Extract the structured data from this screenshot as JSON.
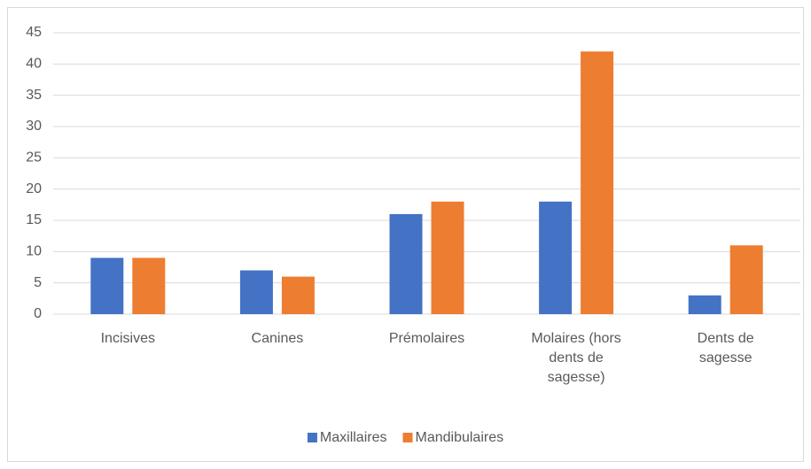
{
  "chart_data": {
    "type": "bar",
    "categories": [
      "Incisives",
      "Canines",
      "Prémolaires",
      "Molaires (hors dents de sagesse)",
      "Dents de sagesse"
    ],
    "series": [
      {
        "name": "Maxillaires",
        "color": "#4472c4",
        "values": [
          9,
          7,
          16,
          18,
          3
        ]
      },
      {
        "name": "Mandibulaires",
        "color": "#ed7d31",
        "values": [
          9,
          6,
          18,
          42,
          11
        ]
      }
    ],
    "ylim": [
      0,
      45
    ],
    "yticks": [
      0,
      5,
      10,
      15,
      20,
      25,
      30,
      35,
      40,
      45
    ],
    "grid": true,
    "legend": "bottom"
  }
}
